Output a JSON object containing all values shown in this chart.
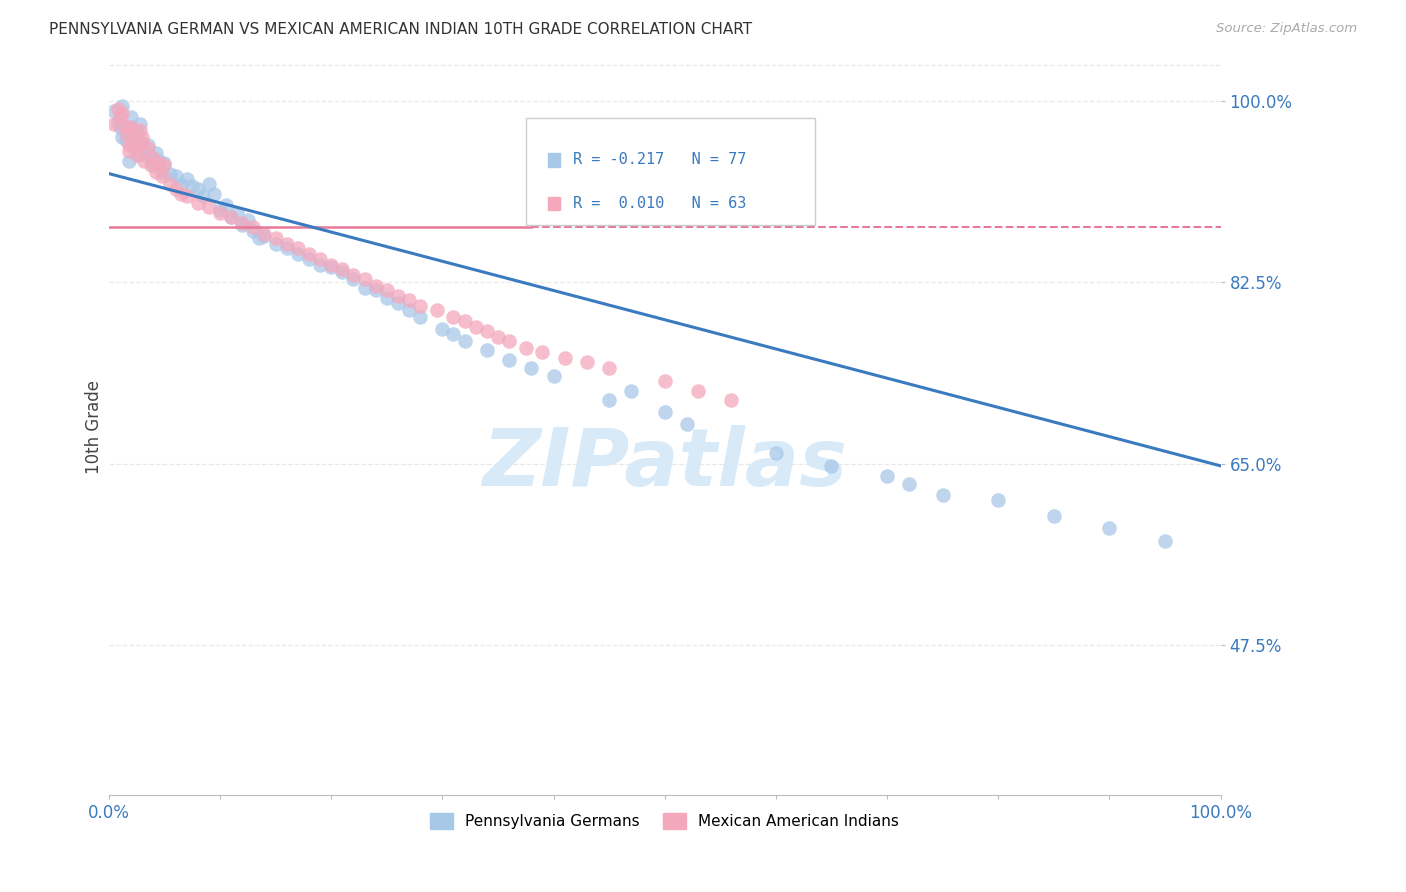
{
  "title": "PENNSYLVANIA GERMAN VS MEXICAN AMERICAN INDIAN 10TH GRADE CORRELATION CHART",
  "source_text": "Source: ZipAtlas.com",
  "ylabel": "10th Grade",
  "xlim": [
    0.0,
    1.0
  ],
  "ylim": [
    0.33,
    1.04
  ],
  "yticks": [
    0.475,
    0.65,
    0.825,
    1.0
  ],
  "ytick_labels": [
    "47.5%",
    "65.0%",
    "82.5%",
    "100.0%"
  ],
  "xticks": [
    0.0,
    0.1,
    0.2,
    0.3,
    0.4,
    0.5,
    0.6,
    0.7,
    0.8,
    0.9,
    1.0
  ],
  "xtick_labels": [
    "0.0%",
    "",
    "",
    "",
    "",
    "",
    "",
    "",
    "",
    "",
    "100.0%"
  ],
  "legend_blue_label": "Pennsylvania Germans",
  "legend_pink_label": "Mexican American Indians",
  "legend_r_blue": "R = -0.217",
  "legend_n_blue": "N = 77",
  "legend_r_pink": "R =  0.010",
  "legend_n_pink": "N = 63",
  "blue_color": "#a8c8e8",
  "pink_color": "#f4a8bc",
  "blue_line_color": "#3a7abf",
  "pink_line_color": "#e87898",
  "r_value_color": "#3a7abf",
  "watermark_color": "#d8eaf8",
  "blue_scatter_x": [
    0.005,
    0.008,
    0.01,
    0.012,
    0.015,
    0.018,
    0.02,
    0.022,
    0.025,
    0.028,
    0.012,
    0.015,
    0.018,
    0.022,
    0.025,
    0.028,
    0.03,
    0.032,
    0.035,
    0.038,
    0.04,
    0.042,
    0.045,
    0.048,
    0.05,
    0.055,
    0.06,
    0.065,
    0.07,
    0.075,
    0.08,
    0.085,
    0.09,
    0.095,
    0.1,
    0.105,
    0.11,
    0.115,
    0.12,
    0.125,
    0.13,
    0.135,
    0.14,
    0.15,
    0.16,
    0.17,
    0.18,
    0.19,
    0.2,
    0.21,
    0.22,
    0.23,
    0.24,
    0.25,
    0.26,
    0.27,
    0.28,
    0.3,
    0.31,
    0.32,
    0.34,
    0.36,
    0.38,
    0.4,
    0.45,
    0.47,
    0.5,
    0.52,
    0.6,
    0.65,
    0.7,
    0.72,
    0.75,
    0.8,
    0.85,
    0.9,
    0.95
  ],
  "blue_scatter_y": [
    0.99,
    0.98,
    0.975,
    0.965,
    0.972,
    0.968,
    0.985,
    0.96,
    0.955,
    0.978,
    0.995,
    0.962,
    0.942,
    0.958,
    0.97,
    0.948,
    0.96,
    0.952,
    0.958,
    0.945,
    0.938,
    0.95,
    0.942,
    0.932,
    0.94,
    0.93,
    0.928,
    0.92,
    0.925,
    0.918,
    0.915,
    0.908,
    0.92,
    0.91,
    0.895,
    0.9,
    0.888,
    0.892,
    0.88,
    0.885,
    0.875,
    0.868,
    0.87,
    0.862,
    0.858,
    0.852,
    0.848,
    0.842,
    0.84,
    0.835,
    0.828,
    0.82,
    0.818,
    0.81,
    0.805,
    0.798,
    0.792,
    0.78,
    0.775,
    0.768,
    0.76,
    0.75,
    0.742,
    0.735,
    0.712,
    0.72,
    0.7,
    0.688,
    0.66,
    0.648,
    0.638,
    0.63,
    0.62,
    0.615,
    0.6,
    0.588,
    0.575
  ],
  "pink_scatter_x": [
    0.005,
    0.008,
    0.01,
    0.015,
    0.018,
    0.02,
    0.022,
    0.025,
    0.028,
    0.03,
    0.012,
    0.015,
    0.018,
    0.025,
    0.03,
    0.032,
    0.035,
    0.038,
    0.04,
    0.042,
    0.045,
    0.048,
    0.05,
    0.055,
    0.06,
    0.065,
    0.07,
    0.08,
    0.09,
    0.1,
    0.11,
    0.12,
    0.13,
    0.14,
    0.15,
    0.16,
    0.17,
    0.18,
    0.19,
    0.2,
    0.21,
    0.22,
    0.23,
    0.24,
    0.25,
    0.26,
    0.27,
    0.28,
    0.295,
    0.31,
    0.32,
    0.33,
    0.34,
    0.35,
    0.36,
    0.375,
    0.39,
    0.41,
    0.43,
    0.45,
    0.5,
    0.53,
    0.56
  ],
  "pink_scatter_y": [
    0.978,
    0.992,
    0.985,
    0.968,
    0.958,
    0.975,
    0.962,
    0.955,
    0.972,
    0.965,
    0.988,
    0.975,
    0.952,
    0.948,
    0.96,
    0.942,
    0.955,
    0.938,
    0.945,
    0.932,
    0.94,
    0.928,
    0.938,
    0.92,
    0.915,
    0.91,
    0.908,
    0.902,
    0.898,
    0.892,
    0.888,
    0.882,
    0.878,
    0.872,
    0.868,
    0.862,
    0.858,
    0.852,
    0.848,
    0.842,
    0.838,
    0.832,
    0.828,
    0.822,
    0.818,
    0.812,
    0.808,
    0.802,
    0.798,
    0.792,
    0.788,
    0.782,
    0.778,
    0.772,
    0.768,
    0.762,
    0.758,
    0.752,
    0.748,
    0.742,
    0.73,
    0.72,
    0.712
  ],
  "blue_trend_y_start": 0.93,
  "blue_trend_y_end": 0.648,
  "pink_trend_solid_end": 0.38,
  "pink_trend_y_start": 0.878,
  "pink_trend_y_end": 0.878,
  "grid_color": "#e8e8e8",
  "background_color": "#ffffff"
}
